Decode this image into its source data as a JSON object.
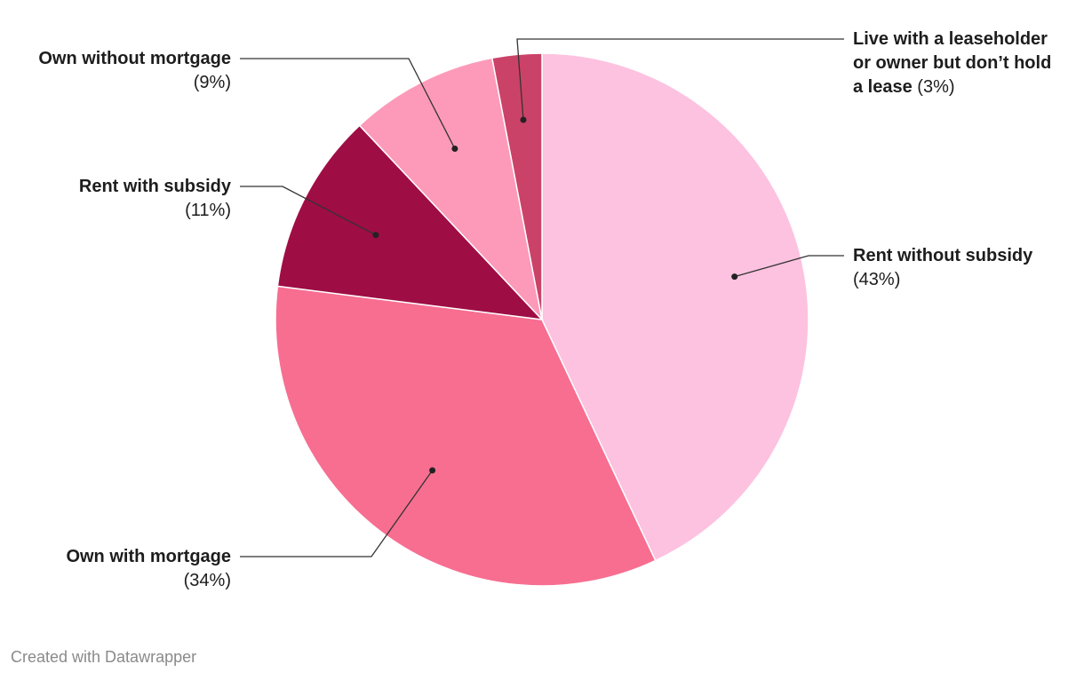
{
  "chart_data": {
    "type": "pie",
    "slices": [
      {
        "label": "Rent without subsidy",
        "pct_label": "(43%)",
        "value": 43,
        "color": "#fdc2e0"
      },
      {
        "label": "Own with mortgage",
        "pct_label": "(34%)",
        "value": 34,
        "color": "#f76e91"
      },
      {
        "label": "Rent with subsidy",
        "pct_label": "(11%)",
        "value": 11,
        "color": "#9f0d45"
      },
      {
        "label": "Own without mortgage",
        "pct_label": "(9%)",
        "value": 9,
        "color": "#fd9ab9"
      },
      {
        "label": "Live with a leaseholder or owner but don’t hold a lease",
        "label_lines": [
          "Live with a leaseholder",
          "or owner but don’t hold",
          "a lease"
        ],
        "pct_label": "(3%)",
        "value": 3,
        "color": "#cb4268"
      }
    ]
  },
  "footer": {
    "text": "Created with Datawrapper"
  }
}
